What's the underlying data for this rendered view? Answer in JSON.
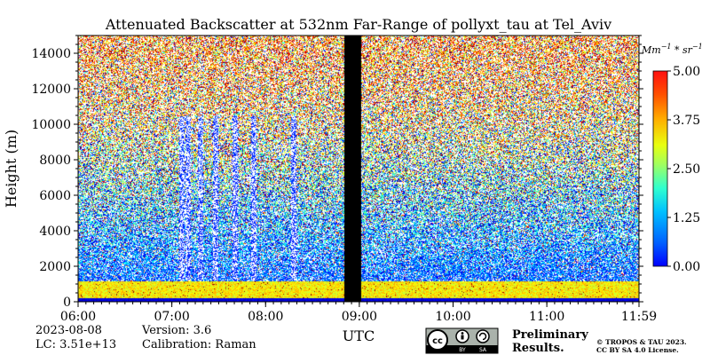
{
  "chart_data": {
    "type": "heatmap",
    "title": "Attenuated Backscatter at 532nm Far-Range of pollyxt_tau at Tel_Aviv",
    "xlabel": "UTC",
    "ylabel": "Height (m)",
    "x_range": [
      "06:00",
      "11:59"
    ],
    "x_ticks": [
      "06:00",
      "07:00",
      "08:00",
      "09:00",
      "10:00",
      "11:00",
      "11:59"
    ],
    "ylim": [
      0,
      15000
    ],
    "y_ticks": [
      "0",
      "2000",
      "4000",
      "6000",
      "8000",
      "10000",
      "12000",
      "14000"
    ],
    "colorbar": {
      "unit": "Mm⁻¹ * sr⁻¹",
      "range": [
        0.0,
        5.0
      ],
      "ticks": [
        "0.00",
        "1.25",
        "2.50",
        "3.75",
        "5.00"
      ],
      "colormap": "jet"
    },
    "no_data_intervals": [
      [
        "08:50",
        "09:01"
      ]
    ],
    "layers": {
      "boundary_layer_top_m": 1200,
      "low_signal_profiles_utc": [
        "07:06",
        "07:10",
        "07:18",
        "07:28",
        "07:40",
        "07:52",
        "08:18"
      ]
    },
    "grid": false
  },
  "footer": {
    "date": "2023-08-08",
    "lc": "LC: 3.51e+13",
    "version": "Version: 3.6",
    "calibration": "Calibration: Raman",
    "status_line1": "Preliminary",
    "status_line2": "Results.",
    "copyright_line1": "© TROPOS & TAU 2023.",
    "copyright_line2": "CC BY SA 4.0 License.",
    "license_badge": {
      "icons": [
        "cc-icon",
        "by-icon",
        "sa-icon"
      ],
      "labels": [
        "BY",
        "SA"
      ]
    }
  },
  "colors": {
    "status_text": "#ff3030",
    "no_data": "#000000",
    "colormap_stops": [
      "#00007f",
      "#0000ff",
      "#007fff",
      "#00ffff",
      "#7fff7f",
      "#ffff00",
      "#ff7f00",
      "#ff0000",
      "#7f0000"
    ]
  }
}
